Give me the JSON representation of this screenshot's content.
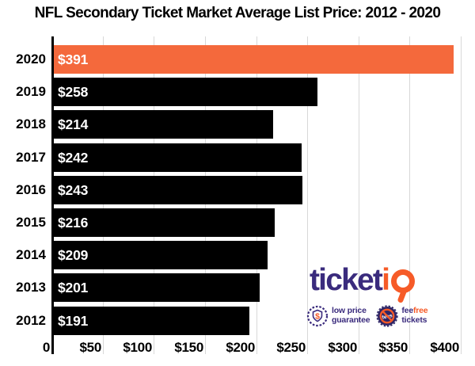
{
  "title": "NFL Secondary Ticket Market Average List Price: 2012 - 2020",
  "chart_data": {
    "type": "bar",
    "orientation": "horizontal",
    "title": "NFL Secondary Ticket Market Average List Price: 2012 - 2020",
    "categories": [
      "2020",
      "2019",
      "2018",
      "2017",
      "2016",
      "2015",
      "2014",
      "2013",
      "2012"
    ],
    "values": [
      391,
      258,
      214,
      242,
      243,
      216,
      209,
      201,
      191
    ],
    "value_labels": [
      "$391",
      "$258",
      "$214",
      "$242",
      "$243",
      "$216",
      "$209",
      "$201",
      "$191"
    ],
    "xlim": [
      0,
      400
    ],
    "x_tick_values": [
      0,
      50,
      100,
      150,
      200,
      250,
      300,
      350,
      400
    ],
    "x_tick_labels": [
      "0",
      "$50",
      "$100",
      "$150",
      "$200",
      "$250",
      "$300",
      "$350",
      "$400"
    ],
    "grid": true,
    "legend": false,
    "highlight_index": 0
  },
  "colors": {
    "bar_highlight": "#F4693C",
    "bar_default": "#000000",
    "bar_label": "#FFFFFF",
    "gridline": "#D8D8D8",
    "axis": "#000000",
    "logo_purple": "#3A2B7D",
    "logo_orange": "#F65B28",
    "badge_navy": "#2E2566"
  },
  "logo": {
    "wordmark_prefix": "ticket",
    "wordmark_i": "i",
    "dollar_sign": "$",
    "no_fee_icon_text": "fees",
    "badge_low_price": {
      "line1": "low price",
      "line2": "guarantee"
    },
    "badge_fee_free": {
      "fee": "fee",
      "free": "free",
      "line2": "tickets"
    }
  }
}
